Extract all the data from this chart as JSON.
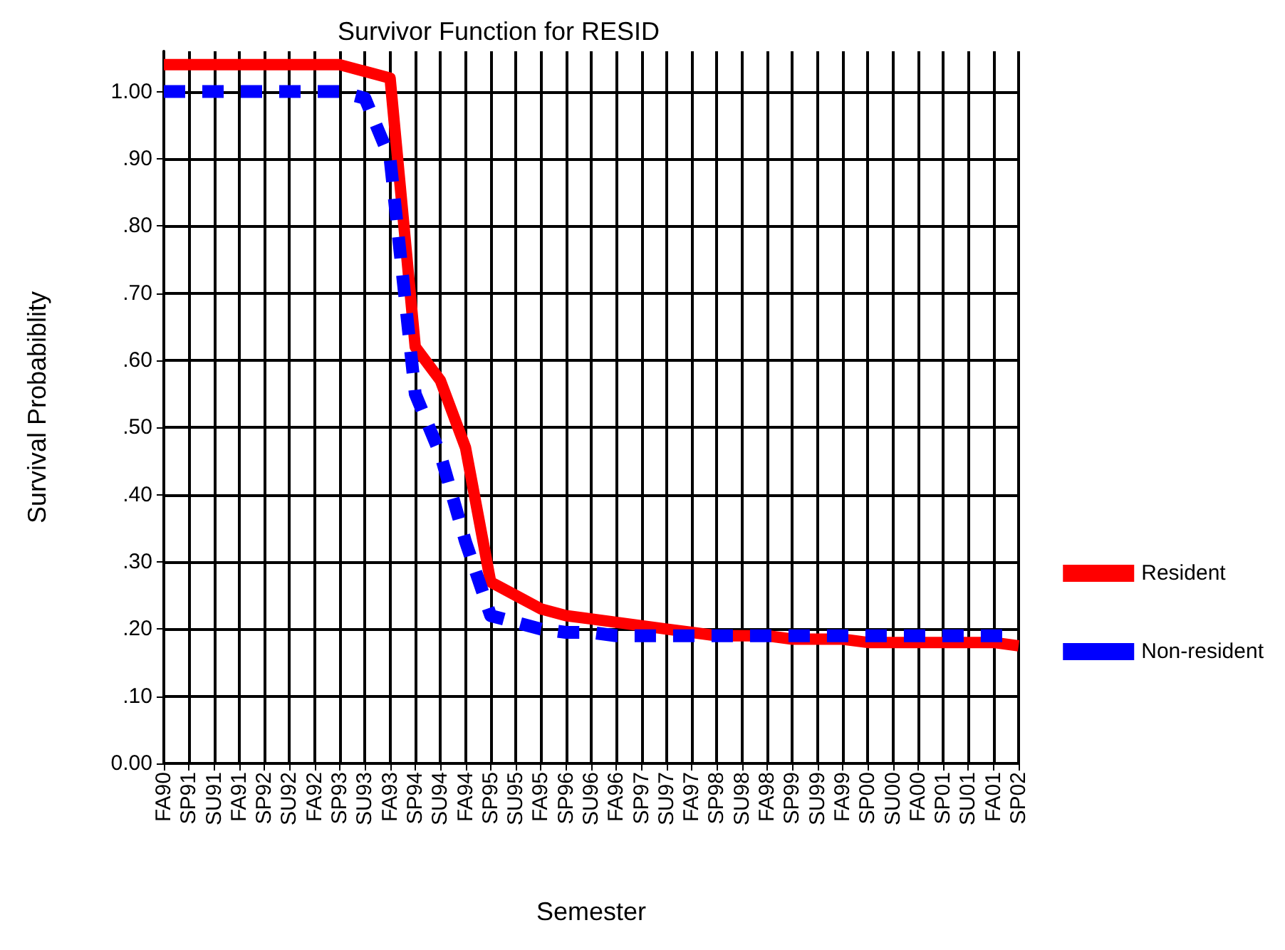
{
  "chart_data": {
    "type": "line",
    "title": "Survivor Function for RESID",
    "xlabel": "Semester",
    "ylabel": "Survival Probabiblity",
    "categories": [
      "FA90",
      "SP91",
      "SU91",
      "FA91",
      "SP92",
      "SU92",
      "FA92",
      "SP93",
      "SU93",
      "FA93",
      "SP94",
      "SU94",
      "FA94",
      "SP95",
      "SU95",
      "FA95",
      "SP96",
      "SU96",
      "FA96",
      "SP97",
      "SU97",
      "FA97",
      "SP98",
      "SU98",
      "FA98",
      "SP99",
      "SU99",
      "FA99",
      "SP00",
      "SU00",
      "FA00",
      "SP01",
      "SU01",
      "FA01",
      "SP02"
    ],
    "series": [
      {
        "name": "Resident",
        "color": "#ff0000",
        "line_style": "solid",
        "values": [
          1.04,
          1.04,
          1.04,
          1.04,
          1.04,
          1.04,
          1.04,
          1.04,
          1.03,
          1.02,
          0.62,
          0.57,
          0.47,
          0.27,
          0.25,
          0.23,
          0.22,
          0.215,
          0.21,
          0.205,
          0.2,
          0.195,
          0.19,
          0.19,
          0.19,
          0.185,
          0.185,
          0.185,
          0.18,
          0.18,
          0.18,
          0.18,
          0.18,
          0.18,
          0.175
        ]
      },
      {
        "name": "Non-resident",
        "color": "#0000ff",
        "line_style": "dashed",
        "values": [
          1.0,
          1.0,
          1.0,
          1.0,
          1.0,
          1.0,
          1.0,
          1.0,
          0.99,
          0.9,
          0.55,
          0.46,
          0.33,
          0.22,
          0.21,
          0.2,
          0.195,
          0.195,
          0.19,
          0.19,
          0.19,
          0.19,
          0.19,
          0.19,
          0.19,
          0.19,
          0.19,
          0.19,
          0.19,
          0.19,
          0.19,
          0.19,
          0.19,
          0.19,
          0.19
        ]
      }
    ],
    "ylim": [
      0,
      1.06
    ],
    "yticks": [
      {
        "value": 0,
        "label": "0.00"
      },
      {
        "value": 0.1,
        "label": ".10"
      },
      {
        "value": 0.2,
        "label": ".20"
      },
      {
        "value": 0.3,
        "label": ".30"
      },
      {
        "value": 0.4,
        "label": ".40"
      },
      {
        "value": 0.5,
        "label": ".50"
      },
      {
        "value": 0.6,
        "label": ".60"
      },
      {
        "value": 0.7,
        "label": ".70"
      },
      {
        "value": 0.8,
        "label": ".80"
      },
      {
        "value": 0.9,
        "label": ".90"
      },
      {
        "value": 1,
        "label": "1.00"
      }
    ],
    "grid": true,
    "legend": "right",
    "marker": "none"
  }
}
